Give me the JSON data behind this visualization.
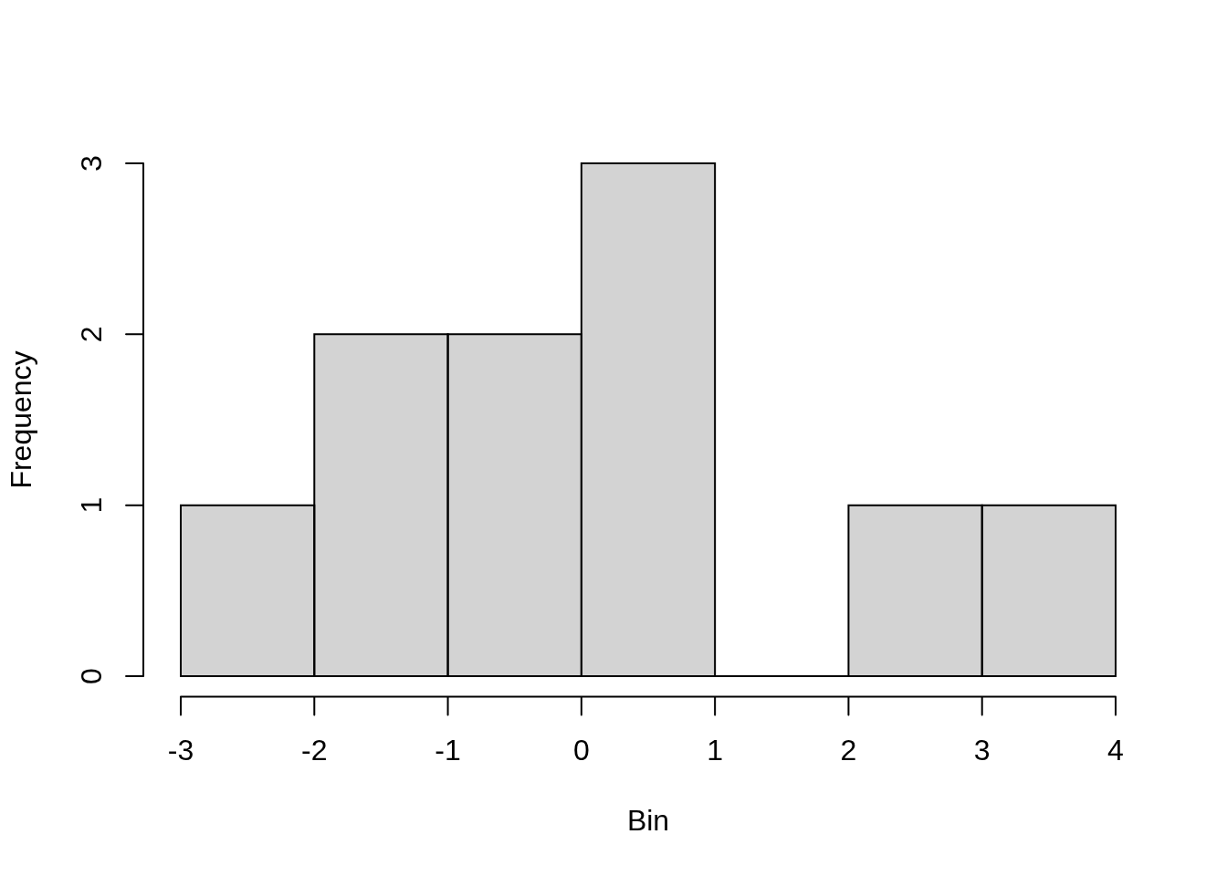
{
  "chart_data": {
    "type": "histogram",
    "xlabel": "Bin",
    "ylabel": "Frequency",
    "bins": [
      -3,
      -2,
      -1,
      0,
      1,
      2,
      3,
      4
    ],
    "values": [
      1,
      2,
      2,
      3,
      0,
      1,
      1
    ],
    "color": "#d3d3d3",
    "xlim": [
      -3,
      4
    ],
    "ylim": [
      0,
      3
    ],
    "xticks": [
      -3,
      -2,
      -1,
      0,
      1,
      2,
      3,
      4
    ],
    "yticks": [
      0,
      1,
      2,
      3
    ]
  }
}
